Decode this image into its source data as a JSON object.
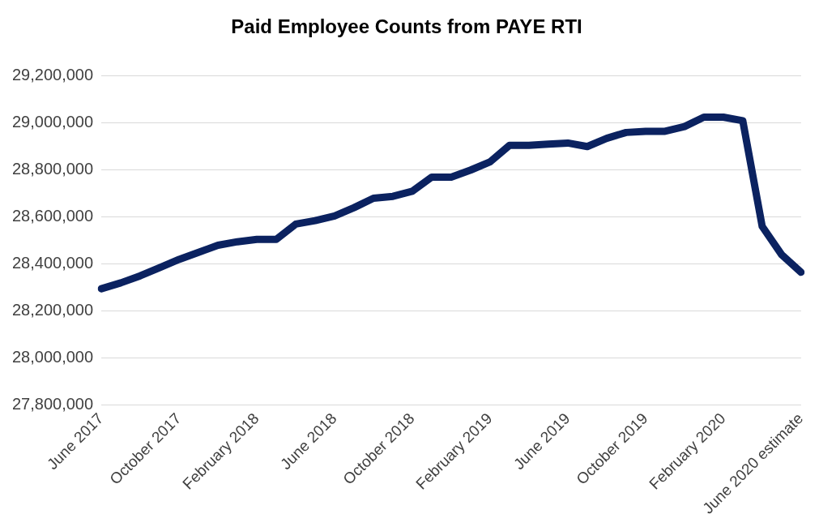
{
  "chart_data": {
    "type": "line",
    "title": "Paid Employee Counts from PAYE RTI",
    "categories": [
      "June 2017",
      null,
      null,
      null,
      "October 2017",
      null,
      null,
      null,
      "February 2018",
      null,
      null,
      null,
      "June 2018",
      null,
      null,
      null,
      "October 2018",
      null,
      null,
      null,
      "February 2019",
      null,
      null,
      null,
      "June 2019",
      null,
      null,
      null,
      "October 2019",
      null,
      null,
      null,
      "February 2020",
      null,
      null,
      null,
      "June 2020 estimate"
    ],
    "series": [
      {
        "color": "#0b2260",
        "values": [
          28295000,
          28320000,
          28350000,
          28385000,
          28420000,
          28450000,
          28480000,
          28495000,
          28505000,
          28505000,
          28570000,
          28585000,
          28605000,
          28640000,
          28680000,
          28688000,
          28710000,
          28770000,
          28770000,
          28800000,
          28835000,
          28905000,
          28905000,
          28910000,
          28915000,
          28900000,
          28935000,
          28960000,
          28965000,
          28965000,
          28985000,
          29025000,
          29025000,
          29010000,
          28560000,
          28440000,
          28365000
        ]
      }
    ],
    "ylim": [
      27800000,
      29200000
    ],
    "yticks": [
      {
        "value": 27800000,
        "label": "27,800,000"
      },
      {
        "value": 28000000,
        "label": "28,000,000"
      },
      {
        "value": 28200000,
        "label": "28,200,000"
      },
      {
        "value": 28400000,
        "label": "28,400,000"
      },
      {
        "value": 28600000,
        "label": "28,600,000"
      },
      {
        "value": 28800000,
        "label": "28,800,000"
      },
      {
        "value": 29000000,
        "label": "29,000,000"
      },
      {
        "value": 29200000,
        "label": "29,200,000"
      }
    ],
    "grid": "y",
    "legend": false,
    "marker": "none",
    "line_style": "solid"
  }
}
